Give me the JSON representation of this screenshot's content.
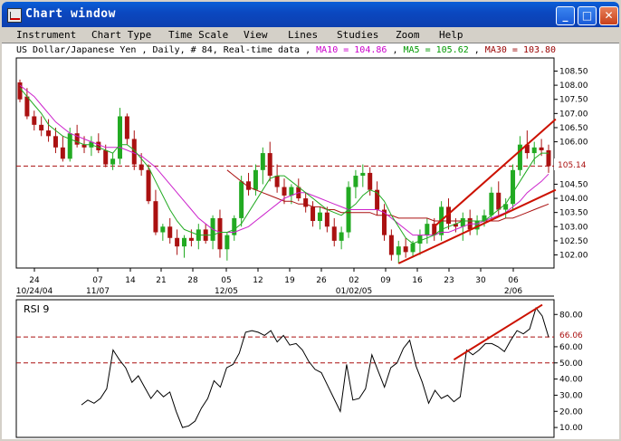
{
  "window": {
    "title": "Chart window",
    "icon": "chart-icon",
    "controls": [
      "minimize-icon",
      "maximize-icon",
      "close-icon"
    ]
  },
  "menu": [
    "Instrument",
    "Chart Type",
    "Time Scale",
    "View",
    "Lines",
    "Studies",
    "Zoom",
    "Help"
  ],
  "info": {
    "symbol": "US Dollar/Japanese Yen , Daily, # 84, Real-time data",
    "sep": " , ",
    "ma10_label": "MA10 = 104.86",
    "ma5_label": "MA5 = 105.62",
    "ma30_label": "MA30 = 103.80",
    "colors": {
      "ma10": "#cc00cc",
      "ma5": "#009900",
      "ma30": "#990000"
    }
  },
  "colors": {
    "up": "#22aa22",
    "down": "#aa1111",
    "ma10": "#cc22cc",
    "ma5": "#22aa22",
    "ma30": "#aa1111",
    "trendline": "#cc1100",
    "rsi": "#000000"
  },
  "price_axis": {
    "ticks": [
      "108.50",
      "108.00",
      "107.50",
      "107.00",
      "106.50",
      "106.00",
      "104.50",
      "104.00",
      "103.50",
      "103.00",
      "102.50",
      "102.00"
    ],
    "current_price": "105.14"
  },
  "date_axis": {
    "day_labels": [
      "24",
      "07",
      "14",
      "21",
      "28",
      "05",
      "12",
      "19",
      "26",
      "02",
      "09",
      "16",
      "23",
      "30",
      "06"
    ],
    "month_labels": [
      "10/24/04",
      "11/07",
      "12/05",
      "01/02/05",
      "2/06"
    ]
  },
  "rsi": {
    "label": "RSI 9",
    "ticks": [
      "80.00",
      "60.00",
      "50.00",
      "40.00",
      "30.00",
      "20.00",
      "10.00"
    ],
    "current": "66.06"
  },
  "chart_data": [
    {
      "type": "candlestick",
      "title": "",
      "series_name": "US Dollar/Japanese Yen",
      "ylim": [
        101.6,
        108.9
      ],
      "ylabel": "",
      "current_price": 105.14,
      "ohlc": [
        [
          108.1,
          108.2,
          107.4,
          107.5
        ],
        [
          107.6,
          107.9,
          106.8,
          106.9
        ],
        [
          106.9,
          107.1,
          106.4,
          106.6
        ],
        [
          106.6,
          106.9,
          106.2,
          106.4
        ],
        [
          106.4,
          106.8,
          106.0,
          106.2
        ],
        [
          106.2,
          106.5,
          105.6,
          105.8
        ],
        [
          105.8,
          106.2,
          105.3,
          105.4
        ],
        [
          105.4,
          106.5,
          105.3,
          106.3
        ],
        [
          106.3,
          106.6,
          105.8,
          105.9
        ],
        [
          105.9,
          106.2,
          105.6,
          105.8
        ],
        [
          105.8,
          106.2,
          105.5,
          106.0
        ],
        [
          106.0,
          106.3,
          105.6,
          105.7
        ],
        [
          105.7,
          105.9,
          105.1,
          105.2
        ],
        [
          105.2,
          105.6,
          105.0,
          105.4
        ],
        [
          105.4,
          107.2,
          105.2,
          106.9
        ],
        [
          106.9,
          107.0,
          105.9,
          106.1
        ],
        [
          106.1,
          106.4,
          105.0,
          105.2
        ],
        [
          105.2,
          105.6,
          104.8,
          105.0
        ],
        [
          105.0,
          105.2,
          103.8,
          103.9
        ],
        [
          103.9,
          104.3,
          102.7,
          102.8
        ],
        [
          102.8,
          103.1,
          102.5,
          103.0
        ],
        [
          103.0,
          103.3,
          102.4,
          102.6
        ],
        [
          102.6,
          102.9,
          102.0,
          102.3
        ],
        [
          102.3,
          102.7,
          101.9,
          102.6
        ],
        [
          102.6,
          102.9,
          102.3,
          102.5
        ],
        [
          102.5,
          103.1,
          102.2,
          102.9
        ],
        [
          102.9,
          103.1,
          102.4,
          102.5
        ],
        [
          102.5,
          103.4,
          102.2,
          103.3
        ],
        [
          103.3,
          103.6,
          101.9,
          102.2
        ],
        [
          102.2,
          102.8,
          101.8,
          102.7
        ],
        [
          102.7,
          103.4,
          102.5,
          103.3
        ],
        [
          103.3,
          104.8,
          103.0,
          104.6
        ],
        [
          104.6,
          104.9,
          104.1,
          104.3
        ],
        [
          104.3,
          105.2,
          104.1,
          105.0
        ],
        [
          105.0,
          105.8,
          104.5,
          105.6
        ],
        [
          105.6,
          106.0,
          104.6,
          104.8
        ],
        [
          104.8,
          105.2,
          104.2,
          104.4
        ],
        [
          104.4,
          104.7,
          103.8,
          104.1
        ],
        [
          104.1,
          104.5,
          103.8,
          104.4
        ],
        [
          104.4,
          104.7,
          103.9,
          104.0
        ],
        [
          104.0,
          104.2,
          103.5,
          103.7
        ],
        [
          103.7,
          103.9,
          103.0,
          103.2
        ],
        [
          103.2,
          103.7,
          102.9,
          103.5
        ],
        [
          103.5,
          103.7,
          102.8,
          103.0
        ],
        [
          103.0,
          103.3,
          102.3,
          102.5
        ],
        [
          102.5,
          103.0,
          102.2,
          102.8
        ],
        [
          102.8,
          104.6,
          102.6,
          104.4
        ],
        [
          104.4,
          105.0,
          104.0,
          104.8
        ],
        [
          104.8,
          105.2,
          104.4,
          104.9
        ],
        [
          104.9,
          105.1,
          104.1,
          104.3
        ],
        [
          104.3,
          104.6,
          103.4,
          103.6
        ],
        [
          103.6,
          103.8,
          102.5,
          102.7
        ],
        [
          102.7,
          102.9,
          101.8,
          102.0
        ],
        [
          102.0,
          102.5,
          101.7,
          102.3
        ],
        [
          102.3,
          102.6,
          101.9,
          102.1
        ],
        [
          102.1,
          102.5,
          101.9,
          102.4
        ],
        [
          102.4,
          102.9,
          102.0,
          102.7
        ],
        [
          102.7,
          103.3,
          102.4,
          103.1
        ],
        [
          103.1,
          103.3,
          102.5,
          102.7
        ],
        [
          102.7,
          103.9,
          102.5,
          103.7
        ],
        [
          103.7,
          104.0,
          102.9,
          103.1
        ],
        [
          103.1,
          103.3,
          102.8,
          103.0
        ],
        [
          103.0,
          103.5,
          102.5,
          103.3
        ],
        [
          103.3,
          103.6,
          102.7,
          102.9
        ],
        [
          102.9,
          103.4,
          102.7,
          103.2
        ],
        [
          103.2,
          103.6,
          103.0,
          103.4
        ],
        [
          103.4,
          104.4,
          103.2,
          104.2
        ],
        [
          104.2,
          104.6,
          103.4,
          103.6
        ],
        [
          103.6,
          104.0,
          103.3,
          103.8
        ],
        [
          103.8,
          105.2,
          103.6,
          105.0
        ],
        [
          105.0,
          106.2,
          104.8,
          105.9
        ],
        [
          105.9,
          106.4,
          105.4,
          105.6
        ],
        [
          105.6,
          106.0,
          105.2,
          105.8
        ],
        [
          105.8,
          106.1,
          105.5,
          105.7
        ],
        [
          105.7,
          105.9,
          104.9,
          105.14
        ]
      ],
      "ma5": [
        107.9,
        107.6,
        107.3,
        107.0,
        106.6,
        106.4,
        106.2,
        106.1,
        106.0,
        105.9,
        105.9,
        105.8,
        105.7,
        105.6,
        105.9,
        105.9,
        105.7,
        105.4,
        105.1,
        104.6,
        104.1,
        103.6,
        103.2,
        102.9,
        102.8,
        102.7,
        102.7,
        102.7,
        102.8,
        102.8,
        102.9,
        103.1,
        103.5,
        103.9,
        104.3,
        104.7,
        104.8,
        104.8,
        104.6,
        104.4,
        104.2,
        104.0,
        103.8,
        103.6,
        103.5,
        103.4,
        103.6,
        103.8,
        104.1,
        104.3,
        104.2,
        103.9,
        103.4,
        103.0,
        102.6,
        102.4,
        102.5,
        102.6,
        102.7,
        102.9,
        103.0,
        103.1,
        103.2,
        103.2,
        103.2,
        103.2,
        103.4,
        103.6,
        103.8,
        104.2,
        104.6,
        105.0,
        105.4,
        105.6,
        105.6
      ],
      "ma10": [
        108.0,
        107.8,
        107.6,
        107.3,
        107.0,
        106.7,
        106.5,
        106.3,
        106.2,
        106.1,
        106.0,
        105.9,
        105.8,
        105.8,
        105.8,
        105.7,
        105.6,
        105.5,
        105.3,
        105.1,
        104.8,
        104.5,
        104.2,
        103.9,
        103.6,
        103.3,
        103.1,
        102.9,
        102.8,
        102.8,
        102.8,
        102.9,
        103.0,
        103.2,
        103.4,
        103.6,
        103.8,
        104.0,
        104.1,
        104.2,
        104.2,
        104.1,
        104.0,
        103.9,
        103.8,
        103.7,
        103.6,
        103.6,
        103.6,
        103.6,
        103.6,
        103.5,
        103.3,
        103.1,
        102.9,
        102.7,
        102.7,
        102.7,
        102.7,
        102.8,
        102.8,
        102.9,
        103.0,
        103.1,
        103.1,
        103.2,
        103.3,
        103.4,
        103.5,
        103.7,
        103.9,
        104.2,
        104.4,
        104.6,
        104.86
      ],
      "ma30": [
        null,
        null,
        null,
        null,
        null,
        null,
        null,
        null,
        null,
        null,
        null,
        null,
        null,
        null,
        null,
        null,
        null,
        null,
        null,
        null,
        null,
        null,
        null,
        null,
        null,
        null,
        null,
        null,
        null,
        105.0,
        104.8,
        104.6,
        104.4,
        104.3,
        104.2,
        104.1,
        104.0,
        103.9,
        103.9,
        103.8,
        103.8,
        103.7,
        103.7,
        103.6,
        103.6,
        103.5,
        103.5,
        103.5,
        103.5,
        103.5,
        103.4,
        103.4,
        103.4,
        103.3,
        103.3,
        103.3,
        103.3,
        103.3,
        103.2,
        103.2,
        103.2,
        103.2,
        103.2,
        103.2,
        103.2,
        103.2,
        103.2,
        103.2,
        103.3,
        103.3,
        103.4,
        103.5,
        103.6,
        103.7,
        103.8
      ],
      "trendlines": [
        {
          "from": [
            58,
            103.0
          ],
          "to": [
            75,
            106.8
          ]
        },
        {
          "from": [
            53,
            101.7
          ],
          "to": [
            75,
            104.3
          ]
        }
      ]
    },
    {
      "type": "line",
      "title": "RSI 9",
      "ylim": [
        5,
        88
      ],
      "ylabel": "",
      "reference_levels": [
        66.06,
        50.0
      ],
      "values": [
        24,
        27,
        25,
        28,
        34,
        58,
        52,
        47,
        38,
        42,
        35,
        28,
        33,
        29,
        32,
        20,
        10,
        11,
        14,
        22,
        28,
        39,
        35,
        47,
        49,
        56,
        69,
        70,
        69,
        67,
        70,
        63,
        67,
        61,
        62,
        58,
        51,
        46,
        44,
        36,
        28,
        20,
        49,
        27,
        28,
        34,
        55,
        45,
        35,
        47,
        50,
        59,
        64,
        48,
        38,
        25,
        33,
        28,
        30,
        26,
        29,
        58,
        55,
        58,
        62,
        62,
        60,
        57,
        64,
        70,
        68,
        71,
        84,
        79,
        66
      ],
      "trendlines": [
        {
          "from": [
            59,
            52
          ],
          "to": [
            73,
            86
          ]
        }
      ]
    }
  ]
}
